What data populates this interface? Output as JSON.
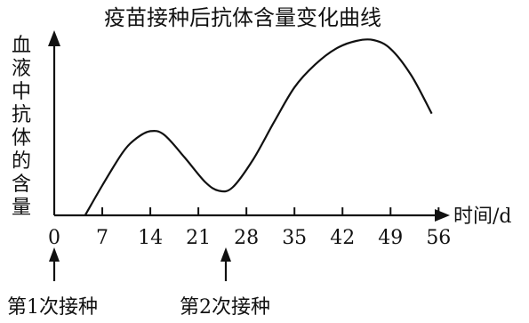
{
  "chart_data": {
    "type": "line",
    "title": "疫苗接种后抗体含量变化曲线",
    "ylabel": "血液中抗体的含量",
    "xlabel": "时间/d",
    "x_ticks": [
      0,
      7,
      14,
      21,
      28,
      35,
      42,
      49,
      56
    ],
    "xlim": [
      0,
      58
    ],
    "ylim": [
      0,
      10
    ],
    "grid": false,
    "series": [
      {
        "x": [
          4.5,
          7,
          10,
          12,
          14,
          16,
          19,
          22,
          24,
          26,
          29,
          32,
          35,
          38,
          41,
          44,
          46.5,
          49,
          52,
          55
        ],
        "y": [
          0,
          1.7,
          3.6,
          4.4,
          4.8,
          4.6,
          3.3,
          1.9,
          1.4,
          1.6,
          3.2,
          5.3,
          7.3,
          8.6,
          9.5,
          9.95,
          10.0,
          9.5,
          8.0,
          5.8
        ]
      }
    ],
    "annotations": [
      {
        "x": 0,
        "label": "第1次接种"
      },
      {
        "x": 25,
        "label": "第2次接种"
      }
    ]
  }
}
